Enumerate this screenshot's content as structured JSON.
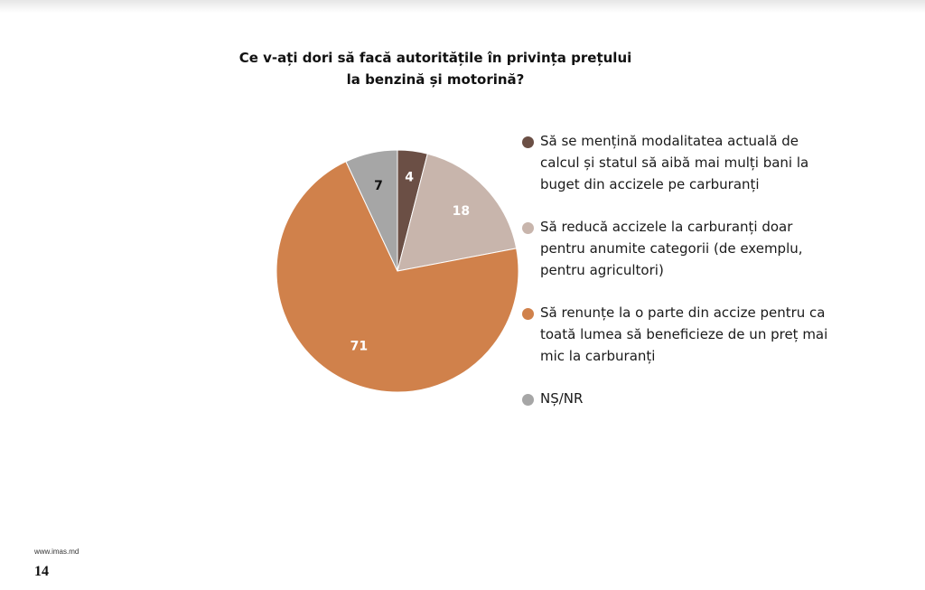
{
  "chart_data": {
    "type": "pie",
    "title": "Ce v-ați dori să facă autoritățile în privința prețului la benzină și motorină?",
    "start_angle_deg": 0,
    "direction": "clockwise",
    "slices": [
      {
        "label": "Să se mențină modalitatea actuală de calcul și statul să aibă mai mulți bani la buget din accizele pe carburanți",
        "value": 4,
        "value_label": "4",
        "color": "#6b4f45",
        "text_color": "#ffffff"
      },
      {
        "label": "Să reducă accizele la carburanți doar pentru anumite categorii (de exemplu, pentru agricultori)",
        "value": 18,
        "value_label": "18",
        "color": "#c8b5ac",
        "text_color": "#ffffff"
      },
      {
        "label": "Să renunțe la o parte din accize pentru ca toată lumea să beneficieze de un preț mai mic la carburanți",
        "value": 71,
        "value_label": "71",
        "color": "#d0814b",
        "text_color": "#ffffff"
      },
      {
        "label": "NȘ/NR",
        "value": 7,
        "value_label": "7",
        "color": "#a6a6a6",
        "text_color": "#111111"
      }
    ],
    "legend_position": "right"
  },
  "footer": {
    "website": "www.imas.md",
    "page_number": "14"
  }
}
